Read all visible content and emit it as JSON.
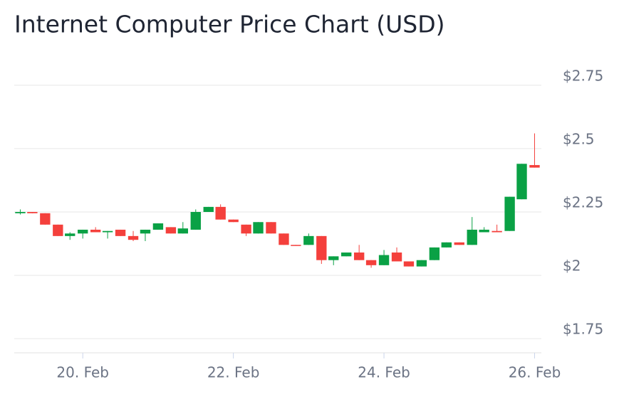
{
  "chart_data": {
    "type": "candlestick",
    "title": "Internet Computer Price Chart (USD)",
    "x": [
      19.17,
      19.33,
      19.5,
      19.67,
      19.83,
      20,
      20.17,
      20.33,
      20.5,
      20.67,
      20.83,
      21,
      21.17,
      21.33,
      21.5,
      21.67,
      21.83,
      22,
      22.17,
      22.33,
      22.5,
      22.67,
      22.83,
      23,
      23.17,
      23.33,
      23.5,
      23.67,
      23.83,
      24,
      24.17,
      24.33,
      24.5,
      24.67,
      24.83,
      25,
      25.17,
      25.33,
      25.5,
      25.67,
      25.83,
      26
    ],
    "open": [
      2.245,
      2.25,
      2.245,
      2.2,
      2.155,
      2.165,
      2.18,
      2.17,
      2.18,
      2.155,
      2.165,
      2.18,
      2.19,
      2.165,
      2.18,
      2.25,
      2.27,
      2.22,
      2.2,
      2.165,
      2.21,
      2.165,
      2.12,
      2.12,
      2.155,
      2.06,
      2.075,
      2.09,
      2.06,
      2.04,
      2.09,
      2.055,
      2.035,
      2.06,
      2.11,
      2.13,
      2.12,
      2.17,
      2.175,
      2.175,
      2.3,
      2.435
    ],
    "high": [
      2.26,
      2.25,
      2.245,
      2.2,
      2.17,
      2.18,
      2.19,
      2.175,
      2.18,
      2.175,
      2.18,
      2.205,
      2.19,
      2.21,
      2.26,
      2.27,
      2.28,
      2.22,
      2.2,
      2.21,
      2.21,
      2.165,
      2.12,
      2.165,
      2.155,
      2.075,
      2.09,
      2.12,
      2.06,
      2.1,
      2.11,
      2.055,
      2.06,
      2.11,
      2.13,
      2.13,
      2.23,
      2.19,
      2.2,
      2.31,
      2.44,
      2.56
    ],
    "low": [
      2.24,
      2.245,
      2.2,
      2.155,
      2.14,
      2.145,
      2.17,
      2.145,
      2.155,
      2.135,
      2.135,
      2.18,
      2.165,
      2.165,
      2.18,
      2.25,
      2.22,
      2.21,
      2.155,
      2.165,
      2.165,
      2.12,
      2.118,
      2.12,
      2.045,
      2.04,
      2.075,
      2.06,
      2.03,
      2.04,
      2.055,
      2.035,
      2.035,
      2.06,
      2.11,
      2.12,
      2.12,
      2.17,
      2.17,
      2.175,
      2.3,
      2.425
    ],
    "close": [
      2.25,
      2.245,
      2.2,
      2.155,
      2.165,
      2.18,
      2.17,
      2.175,
      2.155,
      2.14,
      2.18,
      2.205,
      2.165,
      2.185,
      2.25,
      2.27,
      2.22,
      2.21,
      2.165,
      2.21,
      2.165,
      2.12,
      2.118,
      2.155,
      2.06,
      2.075,
      2.09,
      2.06,
      2.04,
      2.08,
      2.055,
      2.035,
      2.06,
      2.11,
      2.13,
      2.12,
      2.18,
      2.18,
      2.17,
      2.31,
      2.44,
      2.425
    ],
    "up_color": "#0aa145",
    "down_color": "#f4403c",
    "xlim": [
      19.09,
      26.09
    ],
    "xticks": [
      {
        "value": 20,
        "label": "20. Feb"
      },
      {
        "value": 22,
        "label": "22. Feb"
      },
      {
        "value": 24,
        "label": "24. Feb"
      },
      {
        "value": 26,
        "label": "26. Feb"
      }
    ],
    "ylim": [
      1.7,
      2.8
    ],
    "yticks": [
      {
        "value": 1.75,
        "label": "$1.75"
      },
      {
        "value": 2,
        "label": "$2"
      },
      {
        "value": 2.25,
        "label": "$2.25"
      },
      {
        "value": 2.5,
        "label": "$2.5"
      },
      {
        "value": 2.75,
        "label": "$2.75"
      }
    ],
    "grid": true
  }
}
